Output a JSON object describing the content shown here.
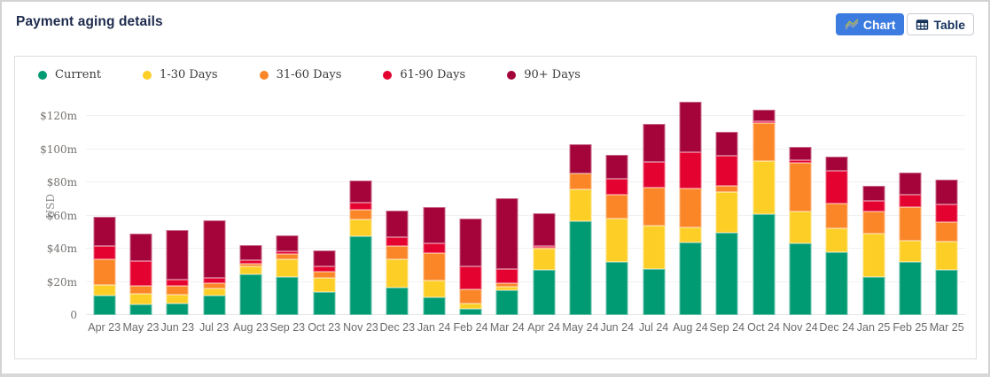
{
  "header": {
    "title": "Payment aging details"
  },
  "toolbar": {
    "chart_label": "Chart",
    "table_label": "Table",
    "active_view": "Chart",
    "accent_color": "#3C7CE0"
  },
  "chart_data": {
    "type": "bar",
    "stacked": true,
    "title": "Payment aging details",
    "xlabel": "",
    "ylabel": "USD",
    "unit": "$m",
    "ylim": [
      0,
      129
    ],
    "grid": true,
    "legend_position": "top",
    "yticks": [
      "0",
      "$20m",
      "$40m",
      "$60m",
      "$80m",
      "$100m",
      "$120m"
    ],
    "ytick_values": [
      0,
      20,
      40,
      60,
      80,
      100,
      120
    ],
    "categories": [
      "Apr 23",
      "May 23",
      "Jun 23",
      "Jul 23",
      "Aug 23",
      "Sep 23",
      "Oct 23",
      "Nov 23",
      "Dec 23",
      "Jan 24",
      "Feb 24",
      "Mar 24",
      "Apr 24",
      "May 24",
      "Jun 24",
      "Jul 24",
      "Aug 24",
      "Sep 24",
      "Oct 24",
      "Nov 24",
      "Dec 24",
      "Jan 25",
      "Feb 25",
      "Mar 25"
    ],
    "series": [
      {
        "name": "Current",
        "color": "#009A73",
        "values": [
          12,
          6.5,
          7,
          12,
          24.5,
          23,
          14,
          47.5,
          16.5,
          10.5,
          4,
          15,
          27,
          56.5,
          32,
          27.5,
          44,
          49.5,
          61,
          43,
          38,
          23,
          32,
          27
        ]
      },
      {
        "name": "1-30 Days",
        "color": "#FDCE26",
        "values": [
          6,
          6.5,
          5.5,
          4,
          5,
          10.5,
          8.5,
          10,
          17,
          10.5,
          3,
          2,
          13,
          19,
          26,
          26.5,
          9,
          24.5,
          32,
          19.5,
          14.5,
          26,
          13,
          17.5
        ]
      },
      {
        "name": "31-60 Days",
        "color": "#FB8628",
        "values": [
          15.5,
          4.5,
          5,
          3,
          1.5,
          3.5,
          3.5,
          6,
          8,
          16.5,
          8.5,
          2,
          0.5,
          10,
          14.5,
          23,
          23.5,
          4,
          22.5,
          29,
          14.5,
          13.5,
          20,
          11.5
        ]
      },
      {
        "name": "61-90 Days",
        "color": "#E40330",
        "values": [
          8,
          15,
          4,
          3.5,
          2,
          1.5,
          3.5,
          4,
          5.5,
          5.5,
          14,
          8.5,
          1,
          0,
          9.5,
          15.5,
          21.5,
          18,
          1.5,
          2,
          20,
          6.5,
          7.5,
          10.5
        ]
      },
      {
        "name": "90+ Days",
        "color": "#A40439",
        "values": [
          17.5,
          16.5,
          29.5,
          34.5,
          9,
          9.5,
          9.5,
          13.5,
          16,
          22,
          28.5,
          43,
          20,
          17.5,
          14.5,
          22.5,
          30.5,
          14.5,
          6.5,
          8,
          8.5,
          9,
          13.5,
          15
        ]
      }
    ]
  }
}
